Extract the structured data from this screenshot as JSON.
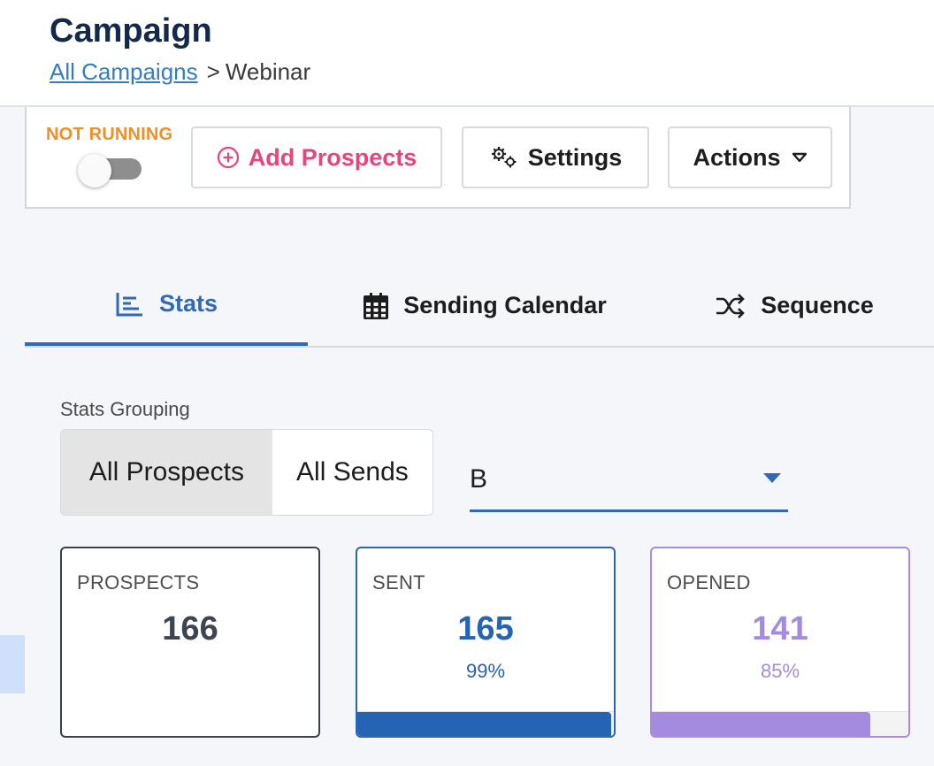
{
  "header": {
    "title": "Campaign",
    "breadcrumb": {
      "link": "All Campaigns",
      "separator": ">",
      "current": "Webinar"
    }
  },
  "toolbar": {
    "status": "NOT RUNNING",
    "toggle_on": false,
    "add_prospects": "Add Prospects",
    "settings": "Settings",
    "actions": "Actions"
  },
  "tabs": [
    {
      "label": "Stats",
      "icon": "bar-list-icon",
      "active": true
    },
    {
      "label": "Sending Calendar",
      "icon": "calendar-icon",
      "active": false
    },
    {
      "label": "Sequence",
      "icon": "shuffle-icon",
      "active": false
    }
  ],
  "grouping": {
    "label": "Stats Grouping",
    "options": [
      "All Prospects",
      "All Sends"
    ],
    "selected": "All Prospects"
  },
  "variant_select": {
    "value": "B"
  },
  "cards": [
    {
      "label": "PROSPECTS",
      "value": "166",
      "percent": "",
      "fill": 0
    },
    {
      "label": "SENT",
      "value": "165",
      "percent": "99%",
      "fill": 0.99
    },
    {
      "label": "OPENED",
      "value": "141",
      "percent": "85%",
      "fill": 0.85
    }
  ],
  "colors": {
    "brand_navy": "#13294b",
    "primary_blue": "#2563b3",
    "accent_pink": "#e8457b",
    "status_orange": "#f0902a",
    "opened_purple": "#a58be0"
  }
}
